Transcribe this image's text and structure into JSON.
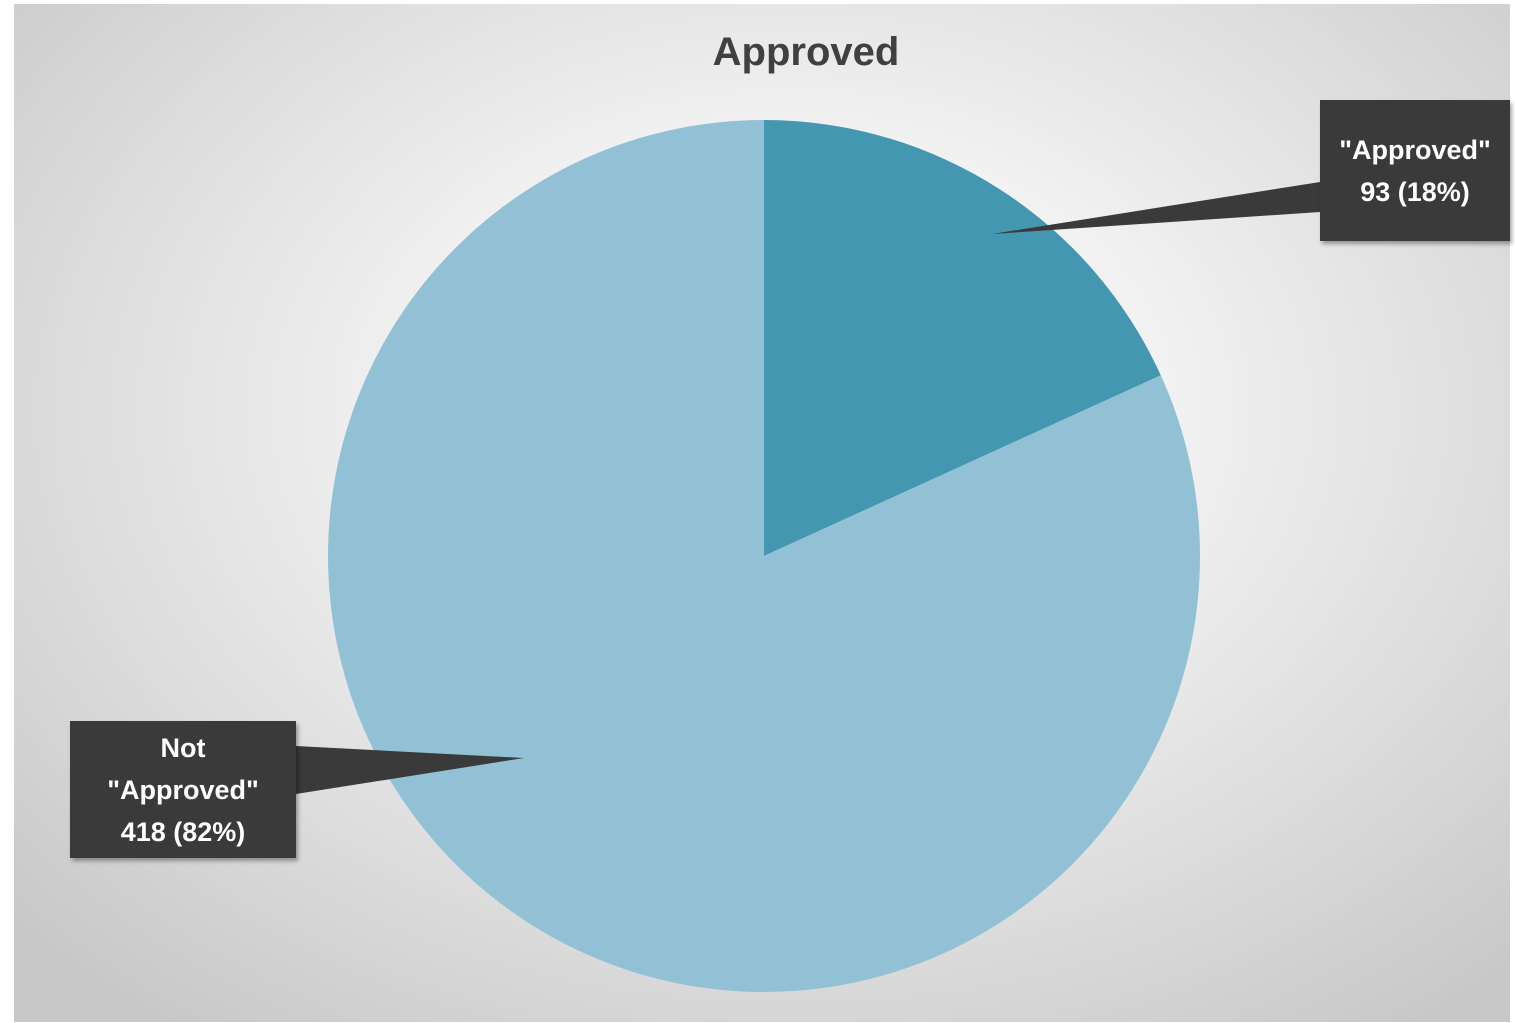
{
  "chart_data": {
    "type": "pie",
    "title": "Approved",
    "categories": [
      "\"Approved\"",
      "Not \"Approved\""
    ],
    "values": [
      93,
      418
    ],
    "percentages": [
      "18%",
      "82%"
    ],
    "labels": [
      {
        "line1": "\"Approved\"",
        "line2": "93 (18%)"
      },
      {
        "line1": "Not",
        "line2": "\"Approved\"",
        "line3": "418 (82%)"
      }
    ],
    "colors": [
      "#4397b0",
      "#92c1d6"
    ],
    "legend": "none",
    "start_angle": "12 o'clock",
    "direction": "clockwise"
  }
}
